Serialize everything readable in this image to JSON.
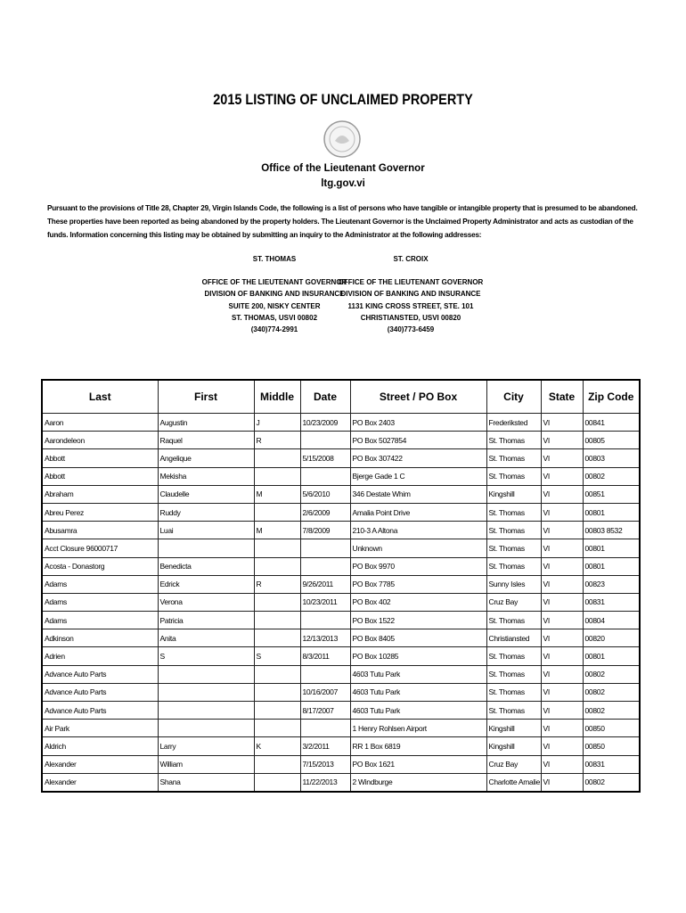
{
  "title": "2015 LISTING OF UNCLAIMED PROPERTY",
  "office": "Office of the Lieutenant Governor",
  "website": "ltg.gov.vi",
  "intro": "Pursuant to the provisions of Title 28, Chapter 29, Virgin Islands Code, the following is a list of persons who have tangible or intangible property that is presumed to be abandoned. These properties have been reported as being abandoned by the property holders. The Lieutenant Governor is the Unclaimed Property Administrator and acts as custodian of the funds. Information concerning this listing may be obtained by submitting an inquiry to the Administrator at the following addresses:",
  "addresses": [
    {
      "island": "ST. THOMAS",
      "lines": [
        "OFFICE OF THE LIEUTENANT GOVERNOR",
        "DIVISION OF BANKING AND INSURANCE",
        "SUITE 200, NISKY CENTER",
        "ST. THOMAS, USVI 00802",
        "(340)774-2991"
      ]
    },
    {
      "island": "ST. CROIX",
      "lines": [
        "OFFICE OF THE LIEUTENANT GOVERNOR",
        "DIVISION OF BANKING AND INSURANCE",
        "1131 KING CROSS STREET, STE. 101",
        "CHRISTIANSTED, USVI 00820",
        "(340)773-6459"
      ]
    }
  ],
  "table": {
    "headers": [
      "Last",
      "First",
      "Middle",
      "Date",
      "Street / PO Box",
      "City",
      "State",
      "Zip Code"
    ],
    "rows": [
      [
        "Aaron",
        "Augustin",
        "J",
        "10/23/2009",
        "PO Box 2403",
        "Frederiksted",
        "VI",
        "00841"
      ],
      [
        "Aarondeleon",
        "Raquel",
        "R",
        "",
        "PO Box 5027854",
        "St. Thomas",
        "VI",
        "00805"
      ],
      [
        "Abbott",
        "Angelique",
        "",
        "5/15/2008",
        "PO Box 307422",
        "St. Thomas",
        "VI",
        "00803"
      ],
      [
        "Abbott",
        "Mekisha",
        "",
        "",
        "Bjerge Gade 1 C",
        "St. Thomas",
        "VI",
        "00802"
      ],
      [
        "Abraham",
        "Claudelle",
        "M",
        "5/6/2010",
        "346 Destate Whim",
        "Kingshill",
        "VI",
        "00851"
      ],
      [
        "Abreu Perez",
        "Ruddy",
        "",
        "2/6/2009",
        "Amalia Point Drive",
        "St. Thomas",
        "VI",
        "00801"
      ],
      [
        "Abusamra",
        " Luai",
        "M",
        "7/8/2009",
        "210-3 A Altona",
        "St. Thomas",
        "VI",
        "00803 8532"
      ],
      [
        "Acct Closure  96000717",
        "",
        "",
        "",
        "Unknown",
        "St. Thomas",
        "VI",
        "00801"
      ],
      [
        "Acosta - Donastorg",
        "Benedicta",
        "",
        "",
        "PO Box 9970",
        "St. Thomas",
        "VI",
        "00801"
      ],
      [
        "Adams",
        "Edrick",
        "R",
        "9/26/2011",
        "PO Box 7785",
        "Sunny Isles",
        "VI",
        "00823"
      ],
      [
        "Adams",
        "Verona",
        "",
        "10/23/2011",
        "PO Box 402",
        "Cruz Bay",
        "VI",
        "00831"
      ],
      [
        "Adams",
        "Patricia",
        "",
        "",
        "PO Box 1522",
        "St. Thomas",
        "VI",
        "00804"
      ],
      [
        "Adkinson",
        "Anita",
        "",
        "12/13/2013",
        "PO Box 8405",
        "Christiansted",
        "VI",
        "00820"
      ],
      [
        "Adrien",
        "S",
        "S",
        "8/3/2011",
        "PO Box 10285",
        "St. Thomas",
        "VI",
        "00801"
      ],
      [
        "Advance Auto Parts",
        "",
        "",
        "",
        "4603 Tutu Park",
        "St. Thomas",
        "VI",
        "00802"
      ],
      [
        "Advance Auto Parts",
        "",
        "",
        "10/16/2007",
        "4603 Tutu Park",
        "St. Thomas",
        "VI",
        "00802"
      ],
      [
        "Advance Auto Parts",
        "",
        "",
        "8/17/2007",
        "4603 Tutu Park",
        "St. Thomas",
        "VI",
        "00802"
      ],
      [
        "Air Park",
        "",
        "",
        "",
        "1  Henry Rohlsen Airport",
        "Kingshill",
        "VI",
        "00850"
      ],
      [
        "Aldrich",
        "Larry",
        "K",
        "3/2/2011",
        "RR 1 Box  6819",
        "Kingshill",
        "VI",
        "00850"
      ],
      [
        "Alexander",
        "William",
        "",
        "7/15/2013",
        "PO Box 1621",
        "Cruz Bay",
        "VI",
        "00831"
      ],
      [
        "Alexander",
        "Shana",
        "",
        "11/22/2013",
        "2  Windburge",
        "Charlotte Amalie",
        "VI",
        "00802"
      ]
    ]
  }
}
